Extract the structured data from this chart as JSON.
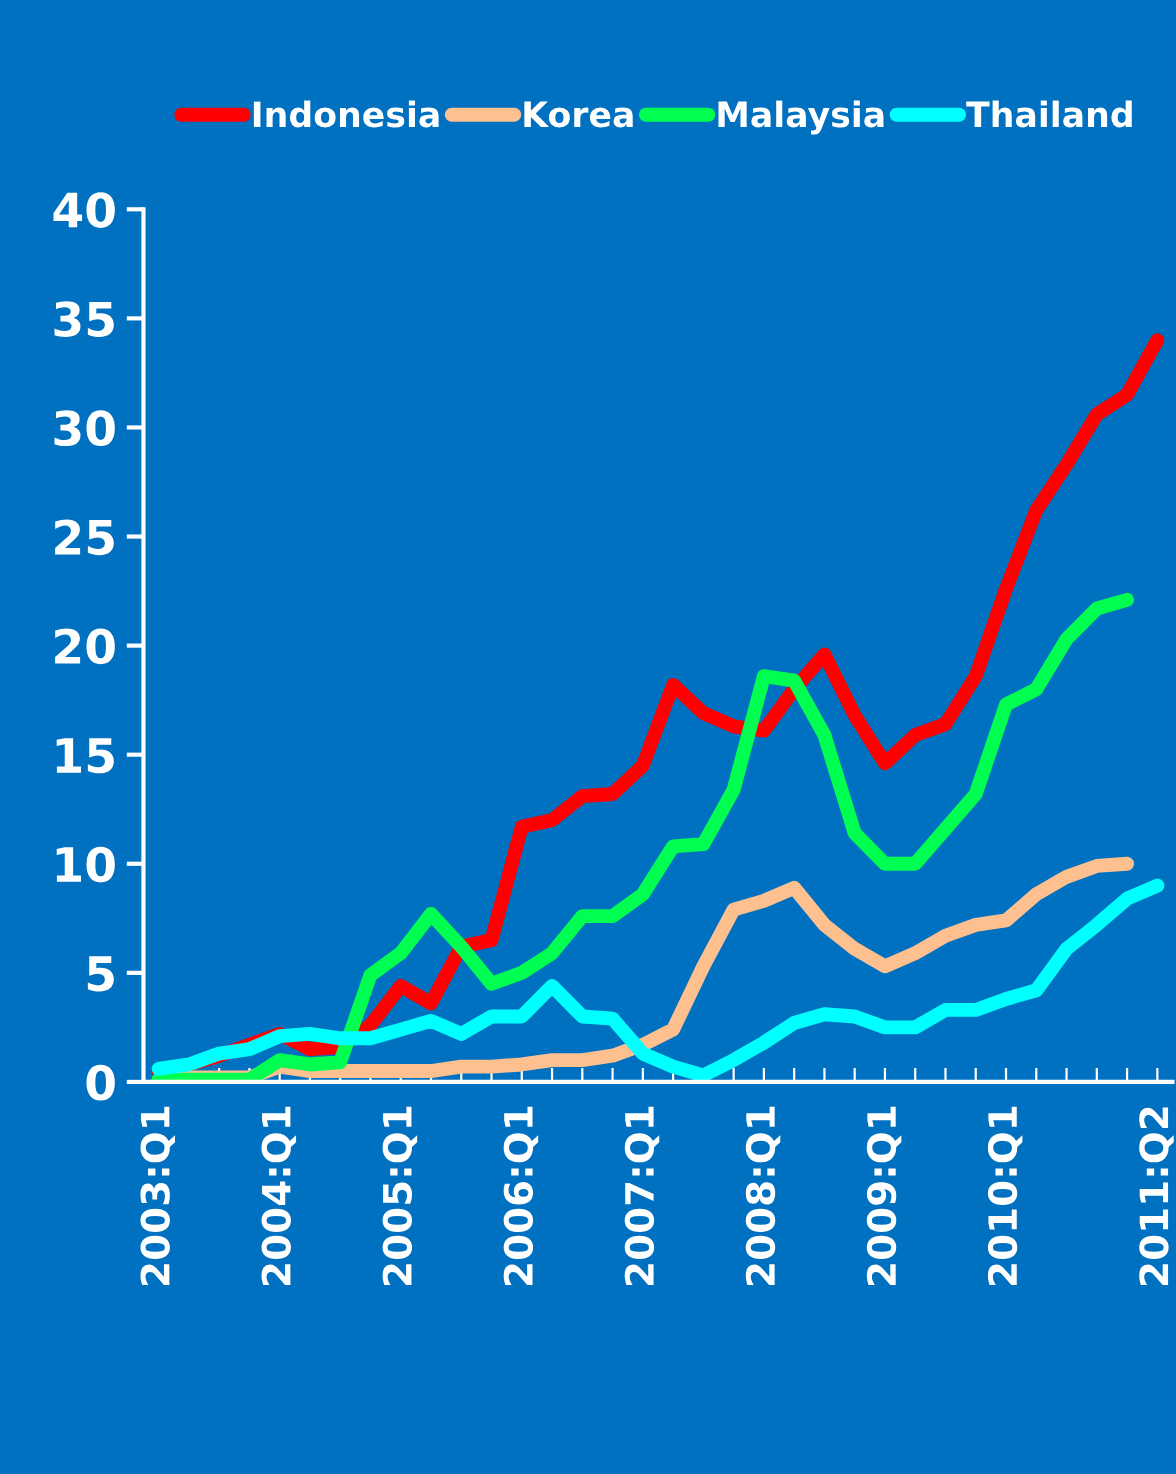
{
  "chart_data": {
    "type": "line",
    "categories": [
      "2003:Q1",
      null,
      null,
      null,
      "2004:Q1",
      null,
      null,
      null,
      "2005:Q1",
      null,
      null,
      null,
      "2006:Q1",
      null,
      null,
      null,
      "2007:Q1",
      null,
      null,
      null,
      "2008:Q1",
      null,
      null,
      null,
      "2009:Q1",
      null,
      null,
      null,
      "2010:Q1",
      null,
      null,
      null,
      null,
      "2011:Q2"
    ],
    "series": [
      {
        "name": "Indonesia",
        "color": "#ff0000",
        "values": [
          0.5,
          0.8,
          1.2,
          1.7,
          2.2,
          1.5,
          1.6,
          2.6,
          4.4,
          3.6,
          6.2,
          6.5,
          11.7,
          12.0,
          13.1,
          13.2,
          14.5,
          18.2,
          16.9,
          16.3,
          16.1,
          18.0,
          19.6,
          16.8,
          14.6,
          15.9,
          16.4,
          18.6,
          22.6,
          26.2,
          28.3,
          30.6,
          31.5,
          34.0
        ]
      },
      {
        "name": "Korea",
        "color": "#ffc090",
        "values": [
          0.1,
          0.2,
          0.2,
          0.2,
          0.7,
          0.5,
          0.5,
          0.5,
          0.5,
          0.5,
          0.7,
          0.7,
          0.8,
          1.0,
          1.0,
          1.2,
          1.7,
          2.4,
          5.3,
          7.9,
          8.3,
          8.9,
          7.2,
          6.1,
          5.3,
          5.9,
          6.7,
          7.2,
          7.4,
          8.6,
          9.4,
          9.9,
          10.0,
          null
        ]
      },
      {
        "name": "Malaysia",
        "color": "#00ff50",
        "values": [
          0.1,
          0.1,
          0.1,
          0.1,
          1.0,
          0.8,
          0.9,
          4.9,
          5.9,
          7.7,
          6.2,
          4.5,
          5.0,
          5.9,
          7.6,
          7.6,
          8.6,
          10.8,
          10.9,
          13.4,
          18.6,
          18.4,
          15.9,
          11.4,
          10.0,
          10.0,
          11.6,
          13.2,
          17.3,
          18.0,
          20.3,
          21.7,
          22.1,
          null
        ]
      },
      {
        "name": "Thailand",
        "color": "#00ffff",
        "values": [
          0.6,
          0.8,
          1.3,
          1.5,
          2.1,
          2.2,
          2.0,
          2.0,
          2.4,
          2.8,
          2.2,
          3.0,
          3.0,
          4.4,
          3.0,
          2.9,
          1.3,
          0.7,
          0.3,
          1.0,
          1.8,
          2.7,
          3.1,
          3.0,
          2.5,
          2.5,
          3.3,
          3.3,
          3.8,
          4.2,
          6.1,
          7.2,
          8.4,
          9.0
        ]
      }
    ],
    "ylim": [
      0,
      40
    ],
    "yticks": [
      0,
      5,
      10,
      15,
      20,
      25,
      30,
      35,
      40
    ],
    "grid": false,
    "legend": "top",
    "marker": "none",
    "line_style": "solid"
  }
}
